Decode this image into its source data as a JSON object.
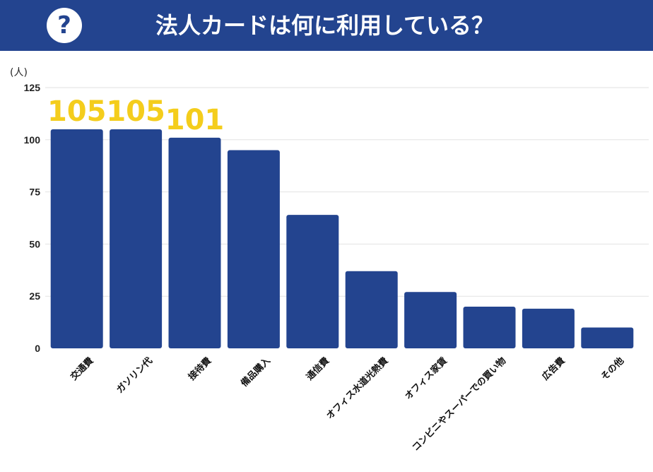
{
  "header": {
    "icon": "question-mark-icon",
    "icon_glyph": "?",
    "title": "法人カードは何に利用している？",
    "bg_color": "#23448f"
  },
  "chart_data": {
    "type": "bar",
    "unit_label": "(人)",
    "categories": [
      "交通費",
      "ガソリン代",
      "接待費",
      "備品購入",
      "通信費",
      "オフィス水道光熱費",
      "オフィス家賃",
      "コンビニやスーパーでの買い物",
      "広告費",
      "その他"
    ],
    "values": [
      105,
      105,
      101,
      95,
      64,
      37,
      27,
      20,
      19,
      10
    ],
    "data_labels": [
      "105",
      "105",
      "101",
      null,
      null,
      null,
      null,
      null,
      null,
      null
    ],
    "ylim": [
      0,
      125
    ],
    "yticks": [
      0,
      25,
      50,
      75,
      100,
      125
    ],
    "grid": true,
    "bar_color": "#23448f",
    "label_color": "#f4cd1c"
  }
}
